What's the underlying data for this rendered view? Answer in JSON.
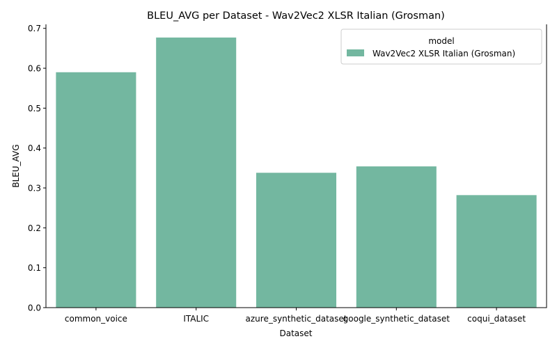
{
  "chart_data": {
    "type": "bar",
    "title": "BLEU_AVG per Dataset - Wav2Vec2 XLSR Italian (Grosman)",
    "xlabel": "Dataset",
    "ylabel": "BLEU_AVG",
    "categories": [
      "common_voice",
      "ITALIC",
      "azure_synthetic_dataset",
      "google_synthetic_dataset",
      "coqui_dataset"
    ],
    "series": [
      {
        "name": "Wav2Vec2 XLSR Italian (Grosman)",
        "values": [
          0.59,
          0.677,
          0.338,
          0.354,
          0.282
        ],
        "color": "#73b7a0"
      }
    ],
    "ylim": [
      0,
      0.71
    ],
    "yticks": [
      "0.0",
      "0.1",
      "0.2",
      "0.3",
      "0.4",
      "0.5",
      "0.6",
      "0.7"
    ],
    "grid": false,
    "legend": {
      "title": "model",
      "position": "top-right"
    }
  }
}
